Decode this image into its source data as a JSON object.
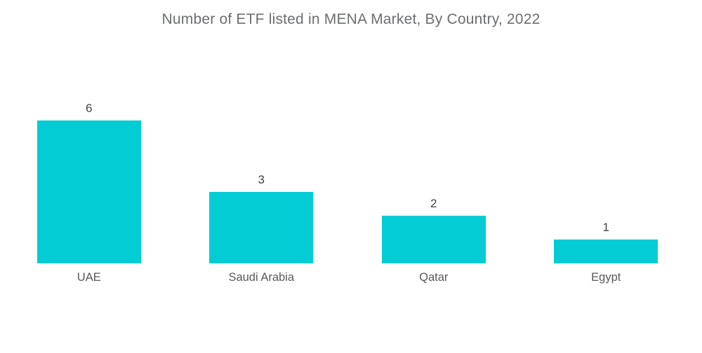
{
  "chart_data": {
    "type": "bar",
    "title": "Number of ETF listed in MENA Market, By Country, 2022",
    "categories": [
      "UAE",
      "Saudi Arabia",
      "Qatar",
      "Egypt"
    ],
    "values": [
      6,
      3,
      2,
      1
    ],
    "xlabel": "",
    "ylabel": "",
    "ylim": [
      0,
      6
    ],
    "grid": false,
    "legend": false,
    "axes_visible": false,
    "value_labels_position": "above-bar"
  },
  "colors": {
    "background": "#ffffff",
    "bar": "#03ccd4",
    "title_text": "#6d6e71",
    "value_text": "#454547",
    "category_text": "#58595b"
  }
}
